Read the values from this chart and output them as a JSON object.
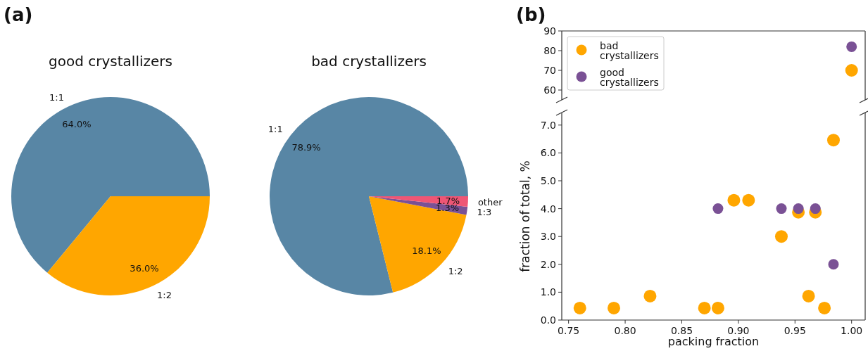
{
  "chart_data": [
    {
      "type": "pie",
      "title": "good crystallizers",
      "annotations": [
        "(a)"
      ],
      "categories": [
        "1:1",
        "1:2"
      ],
      "values": [
        64.0,
        36.0
      ],
      "colors": [
        "#5886a5",
        "#ffa600"
      ],
      "value_labels": [
        "64.0%",
        "36.0%"
      ]
    },
    {
      "type": "pie",
      "title": "bad crystallizers",
      "categories": [
        "1:1",
        "1:2",
        "1:3",
        "other"
      ],
      "values": [
        78.9,
        18.1,
        1.3,
        1.7
      ],
      "colors": [
        "#5886a5",
        "#ffa600",
        "#7a5195",
        "#ef5675"
      ],
      "value_labels": [
        "78.9%",
        "18.1%",
        "1.3%",
        "1.7%"
      ]
    },
    {
      "type": "scatter",
      "annotations": [
        "(b)"
      ],
      "xlim": [
        0.744,
        1.012
      ],
      "ylim": [
        55,
        90
      ],
      "yticks": [
        60,
        70,
        80,
        90
      ],
      "tick_labels": "y",
      "legend": "top left",
      "series": [
        {
          "name": "bad crystallizers",
          "color": "#ffa600",
          "x": [
            1.0
          ],
          "values": [
            70
          ]
        },
        {
          "name": "good crystallizers",
          "color": "#7a5195",
          "x": [
            1.0
          ],
          "values": [
            82
          ]
        }
      ]
    },
    {
      "type": "scatter",
      "xlabel": "packing fraction",
      "ylabel": "fraction of total, %",
      "xlim": [
        0.744,
        1.012
      ],
      "ylim": [
        0,
        7.45
      ],
      "xticks": [
        {
          "value": 0.75,
          "label": "0.75"
        },
        {
          "value": 0.8,
          "label": "0.80"
        },
        {
          "value": 0.85,
          "label": "0.85"
        },
        {
          "value": 0.9,
          "label": "0.90"
        },
        {
          "value": 0.95,
          "label": "0.95"
        },
        {
          "value": 1.0,
          "label": "1.00"
        }
      ],
      "yticks": [
        {
          "value": 0,
          "label": "0.0"
        },
        {
          "value": 1,
          "label": "1.0"
        },
        {
          "value": 2,
          "label": "2.0"
        },
        {
          "value": 3,
          "label": "3.0"
        },
        {
          "value": 4,
          "label": "4.0"
        },
        {
          "value": 5,
          "label": "5.0"
        },
        {
          "value": 6,
          "label": "6.0"
        },
        {
          "value": 7,
          "label": "7.0"
        }
      ],
      "series": [
        {
          "color": "#ffa600",
          "x": [
            0.76,
            0.79,
            0.822,
            0.87,
            0.882,
            0.896,
            0.909,
            0.938,
            0.953,
            0.962,
            0.968,
            0.976,
            0.984
          ],
          "values": [
            0.43,
            0.43,
            0.86,
            0.43,
            0.43,
            4.3,
            4.3,
            3.0,
            3.87,
            0.86,
            3.87,
            0.43,
            6.46
          ]
        },
        {
          "color": "#7a5195",
          "x": [
            0.882,
            0.938,
            0.953,
            0.968,
            0.984
          ],
          "values": [
            4.0,
            4.0,
            4.0,
            4.0,
            2.0
          ]
        }
      ]
    }
  ]
}
